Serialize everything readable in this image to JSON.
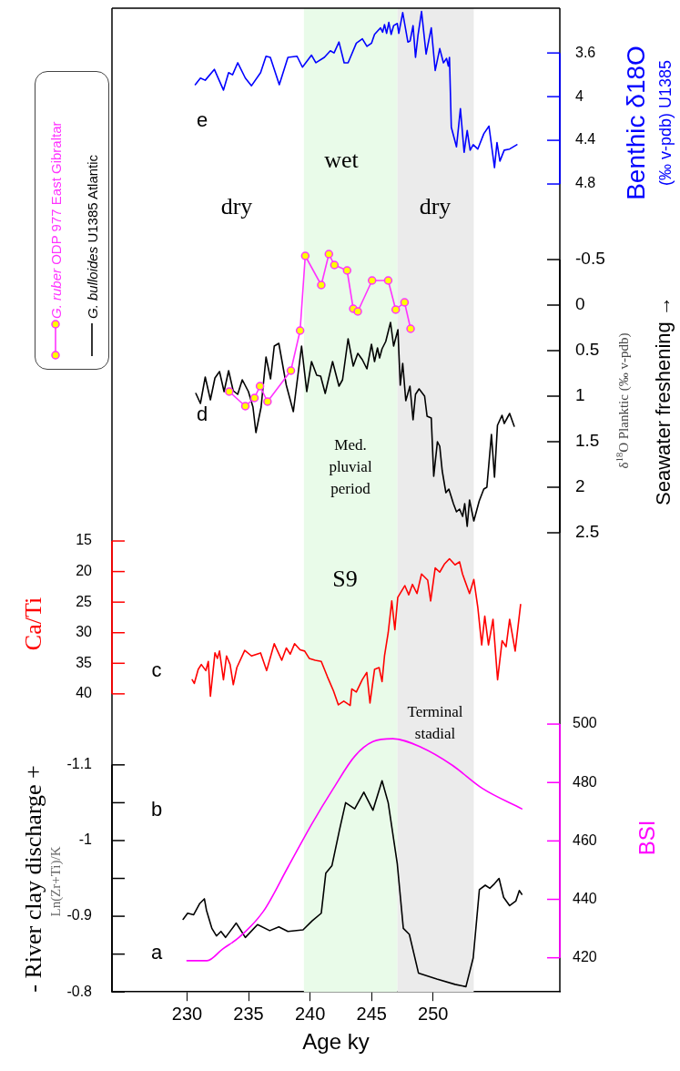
{
  "chart_data": [
    {
      "type": "line",
      "ylabel": "Benthic δ18O\n(‰ v-pdb) U1385",
      "xlim": [
        223.9,
        260.3
      ],
      "xticks": [
        230,
        235,
        240,
        245,
        250
      ],
      "ylim": [
        5.2,
        3.19
      ],
      "yticks": [
        3.6,
        4,
        4.4,
        4.8
      ],
      "tick_labels": "y",
      "bands": [
        {
          "axis": "x",
          "from": 239.5,
          "to": 247.1,
          "color": "#e9fbe9"
        },
        {
          "axis": "x",
          "from": 247.1,
          "to": 253.3,
          "color": "#ebebeb"
        }
      ],
      "annotations": [
        "e",
        "wet",
        "dry",
        "dry"
      ],
      "series": [
        {
          "color": "#0000ff",
          "x": [
            230.67,
            231.09,
            231.48,
            232.22,
            232.96,
            233.38,
            233.7,
            234.12,
            234.74,
            235.24,
            235.98,
            236.42,
            236.77,
            237.5,
            238.2,
            238.94,
            239.38,
            240.12,
            240.47,
            241.16,
            241.65,
            241.95,
            242.35,
            242.77,
            243.09,
            243.76,
            244.25,
            244.62,
            245,
            245.24,
            245.56,
            245.73,
            245.9,
            246.05,
            246.22,
            246.4,
            246.59,
            246.79,
            247.09,
            247.21,
            247.53,
            247.95,
            248.13,
            248.37,
            248.57,
            248.77,
            249.06,
            249.43,
            249.85,
            250.17,
            250.54,
            250.84,
            251.09,
            251.24,
            251.33,
            251.48,
            251.9,
            252.22,
            252.52,
            252.77,
            253.01,
            253.26,
            253.63,
            254.12,
            254.54,
            254.99,
            255.19,
            255.43,
            255.78,
            256.22,
            256.81
          ],
          "values": [
            3.89,
            3.83,
            3.85,
            3.75,
            3.94,
            3.78,
            3.8,
            3.69,
            3.83,
            3.9,
            3.78,
            3.63,
            3.64,
            3.89,
            3.64,
            3.63,
            3.73,
            3.62,
            3.69,
            3.64,
            3.58,
            3.6,
            3.5,
            3.69,
            3.69,
            3.51,
            3.47,
            3.54,
            3.51,
            3.43,
            3.39,
            3.37,
            3.41,
            3.34,
            3.42,
            3.32,
            3.43,
            3.35,
            3.33,
            3.42,
            3.23,
            3.5,
            3.49,
            3.35,
            3.64,
            3.44,
            3.22,
            3.61,
            3.37,
            3.76,
            3.56,
            3.69,
            3.65,
            3.72,
            3.64,
            4.28,
            4.46,
            4.11,
            4.51,
            4.31,
            4.49,
            4.44,
            4.48,
            4.34,
            4.27,
            4.65,
            4.42,
            4.59,
            4.49,
            4.48,
            4.44
          ]
        }
      ]
    },
    {
      "type": "line",
      "ylabel": "δ$^{18}$O Planktic (‰ v-pdb)\nSeawater freshening →",
      "xlim": [
        223.9,
        260.3
      ],
      "xticks": [
        230,
        235,
        240,
        245,
        250
      ],
      "ylim": [
        2.55,
        -0.85
      ],
      "yticks": [
        -0.5,
        0,
        0.5,
        1,
        1.5,
        2,
        2.5
      ],
      "tick_labels": "y",
      "legend": "left",
      "bands": [
        {
          "axis": "x",
          "from": 239.5,
          "to": 247.1,
          "color": "#e9fbe9"
        },
        {
          "axis": "x",
          "from": 247.1,
          "to": 253.3,
          "color": "#ebebeb"
        }
      ],
      "annotations": [
        "d",
        "Med. pluvial period"
      ],
      "series": [
        {
          "name": "G. ruber ODP 977 East Gibraltar",
          "color": "#ff33ff",
          "marker": "circle",
          "x": [
            233.43,
            234.74,
            235.48,
            235.93,
            236.54,
            238.44,
            239.19,
            239.61,
            240.91,
            241.53,
            241.98,
            243.01,
            243.51,
            243.88,
            245.04,
            246.35,
            246.96,
            247.68,
            248.17
          ],
          "values": [
            0.95,
            1.11,
            1.02,
            0.89,
            1.06,
            0.72,
            0.28,
            -0.54,
            -0.22,
            -0.56,
            -0.44,
            -0.38,
            0.04,
            0.07,
            -0.27,
            -0.27,
            0.05,
            -0.03,
            0.26
          ]
        },
        {
          "name": "G. bulloides U1385 Atlantic",
          "color": "#000000",
          "x": [
            230.72,
            231.09,
            231.48,
            231.9,
            232.27,
            232.64,
            233.01,
            233.38,
            233.75,
            234.12,
            234.49,
            234.99,
            235.36,
            235.6,
            236.02,
            236.42,
            236.79,
            237.09,
            237.46,
            238.07,
            238.64,
            239.31,
            239.73,
            240.12,
            240.54,
            240.86,
            241.23,
            241.83,
            242.35,
            242.64,
            243.09,
            243.51,
            243.88,
            244.25,
            244.62,
            244.99,
            245.24,
            245.48,
            245.65,
            245.85,
            246.15,
            246.54,
            246.79,
            247.14,
            247.33,
            247.53,
            247.78,
            248.12,
            248.37,
            248.57,
            248.86,
            249.31,
            249.51,
            249.85,
            250.05,
            250.35,
            250.54,
            250.74,
            251.04,
            251.28,
            251.65,
            251.9,
            252.15,
            252.4,
            252.57,
            252.77,
            252.96,
            253.31,
            253.75,
            254.12,
            254.37,
            254.74,
            254.99,
            255.23,
            255.6,
            255.78,
            256.22,
            256.59
          ],
          "values": [
            0.97,
            1.08,
            0.79,
            1.04,
            0.8,
            0.73,
            0.95,
            0.72,
            0.94,
            0.98,
            0.82,
            0.95,
            1.12,
            1.4,
            1.12,
            0.57,
            0.81,
            0.45,
            0.42,
            0.88,
            1.17,
            0.45,
            0.95,
            0.62,
            0.77,
            0.78,
            0.97,
            0.62,
            0.89,
            0.82,
            0.37,
            0.67,
            0.53,
            0.6,
            0.7,
            0.43,
            0.62,
            0.47,
            0.58,
            0.48,
            0.4,
            0.19,
            0.45,
            0.27,
            0.88,
            0.64,
            1.05,
            0.89,
            1.26,
            0.98,
            0.92,
            1,
            1.22,
            1.24,
            1.88,
            1.5,
            1.55,
            1.82,
            2.06,
            2.02,
            2.18,
            2.27,
            2.24,
            2.32,
            2.18,
            2.43,
            2.14,
            2.37,
            2.15,
            2.02,
            2,
            1.42,
            1.89,
            1.32,
            1.21,
            1.3,
            1.19,
            1.33
          ]
        }
      ]
    },
    {
      "type": "line",
      "ylabel": "Ca/Ti",
      "xlim": [
        223.9,
        260.3
      ],
      "xticks": [
        230,
        235,
        240,
        245,
        250
      ],
      "ylim": [
        42.7,
        14.4
      ],
      "yticks": [
        15,
        20,
        25,
        30,
        35,
        40
      ],
      "tick_labels": "y",
      "bands": [
        {
          "axis": "x",
          "from": 239.5,
          "to": 247.1,
          "color": "#e9fbe9"
        },
        {
          "axis": "x",
          "from": 247.1,
          "to": 253.3,
          "color": "#ebebeb"
        }
      ],
      "annotations": [
        "S9",
        "c"
      ],
      "series": [
        {
          "color": "#ff0000",
          "x": [
            230.42,
            230.59,
            230.91,
            231.16,
            231.53,
            231.73,
            231.9,
            232.27,
            232.47,
            232.64,
            232.96,
            233.21,
            233.5,
            233.76,
            234.05,
            234.69,
            235.24,
            235.98,
            236.47,
            237.09,
            237.7,
            238.07,
            238.39,
            238.74,
            239.19,
            239.56,
            239.93,
            240.42,
            240.91,
            241.41,
            241.9,
            242.3,
            242.74,
            243.26,
            243.39,
            243.76,
            244.24,
            244.61,
            244.87,
            245.24,
            245.61,
            245.85,
            246.05,
            246.35,
            246.64,
            246.89,
            247.13,
            247.7,
            248.02,
            248.32,
            248.69,
            249.06,
            249.56,
            249.8,
            250.17,
            250.54,
            250.91,
            251.33,
            251.78,
            252.15,
            252.39,
            252.96,
            253.31,
            253.63,
            253.95,
            254.2,
            254.5,
            254.87,
            255.24,
            255.61,
            255.93,
            256.22,
            256.67,
            257.11
          ],
          "values": [
            37.7,
            38.3,
            36,
            35.2,
            36.2,
            34.7,
            40.4,
            33.3,
            34.2,
            33,
            37.7,
            33.8,
            35.2,
            38.5,
            35.7,
            32.9,
            33.8,
            33.3,
            36.2,
            31.8,
            34.5,
            32.5,
            33.5,
            31.8,
            32.8,
            33,
            34.2,
            34.5,
            34.7,
            37.2,
            39.5,
            41.8,
            41.2,
            41.9,
            39.2,
            39.7,
            37.7,
            36.5,
            41.5,
            36,
            35.7,
            38,
            33.8,
            30,
            24.8,
            29.5,
            24.2,
            22.3,
            23.8,
            22.1,
            23.6,
            20.4,
            21.4,
            24.8,
            19.4,
            20.1,
            18.8,
            17.9,
            18.9,
            18.4,
            20.4,
            23.6,
            21.3,
            25.8,
            32,
            27.3,
            32,
            27.8,
            37.7,
            31.3,
            32.3,
            27.8,
            33,
            25.4
          ]
        }
      ]
    },
    {
      "type": "line",
      "xlabel": "Age ky",
      "ylabel": "- River clay discharge +\nLn(Zr+Ti)/K",
      "y2label": "BSI",
      "xlim": [
        223.9,
        260.3
      ],
      "xticks": [
        230,
        235,
        240,
        245,
        250
      ],
      "ylim": [
        -0.8,
        -1.172
      ],
      "yticks": [
        -1.1,
        {
          "value": -1.05,
          "label": null
        },
        -1,
        {
          "value": -0.95,
          "label": null
        },
        -0.9,
        {
          "value": -0.85,
          "label": null
        },
        -0.8
      ],
      "y2lim": [
        408.3,
        504.7
      ],
      "y2ticks": [
        420,
        440,
        460,
        480,
        500
      ],
      "bands": [
        {
          "axis": "x",
          "from": 239.5,
          "to": 247.1,
          "color": "#e9fbe9"
        },
        {
          "axis": "x",
          "from": 247.1,
          "to": 253.3,
          "color": "#ebebeb"
        }
      ],
      "annotations": [
        "Terminal stadial",
        "b",
        "a"
      ],
      "series": [
        {
          "axis": "y2",
          "color": "#ff00ff",
          "x": [
            230,
            231.63,
            232.89,
            234.24,
            236.22,
            238.2,
            240.17,
            241.9,
            243.63,
            245.11,
            246.72,
            249.06,
            251.53,
            254,
            257.21
          ],
          "values": [
            419,
            419,
            423,
            427,
            436,
            451,
            466,
            478,
            489,
            494,
            495,
            492,
            486,
            478,
            471
          ]
        },
        {
          "color": "#000000",
          "x": [
            229.68,
            230.05,
            230.54,
            231.04,
            231.41,
            231.58,
            232.02,
            232.39,
            232.76,
            233.13,
            234,
            234.74,
            235.73,
            236.72,
            237.46,
            238.2,
            239.43,
            240.17,
            240.91,
            241.28,
            241.78,
            242.39,
            242.89,
            243.63,
            244.37,
            245.11,
            245.85,
            246.35,
            247.09,
            247.58,
            248.07,
            248.81,
            250.3,
            251.78,
            252.67,
            253.26,
            253.76,
            254.24,
            254.61,
            254.99,
            255.36,
            255.73,
            256.22,
            256.72,
            257.01,
            257.21
          ],
          "values": [
            -0.896,
            -0.904,
            -0.902,
            -0.917,
            -0.923,
            -0.908,
            -0.884,
            -0.874,
            -0.88,
            -0.872,
            -0.891,
            -0.872,
            -0.889,
            -0.881,
            -0.886,
            -0.88,
            -0.882,
            -0.894,
            -0.904,
            -0.957,
            -0.967,
            -1.014,
            -1.05,
            -1.042,
            -1.064,
            -1.04,
            -1.079,
            -1.05,
            -0.969,
            -0.884,
            -0.876,
            -0.825,
            -0.817,
            -0.81,
            -0.807,
            -0.845,
            -0.935,
            -0.941,
            -0.937,
            -0.943,
            -0.95,
            -0.925,
            -0.914,
            -0.92,
            -0.934,
            -0.929
          ]
        }
      ]
    }
  ]
}
